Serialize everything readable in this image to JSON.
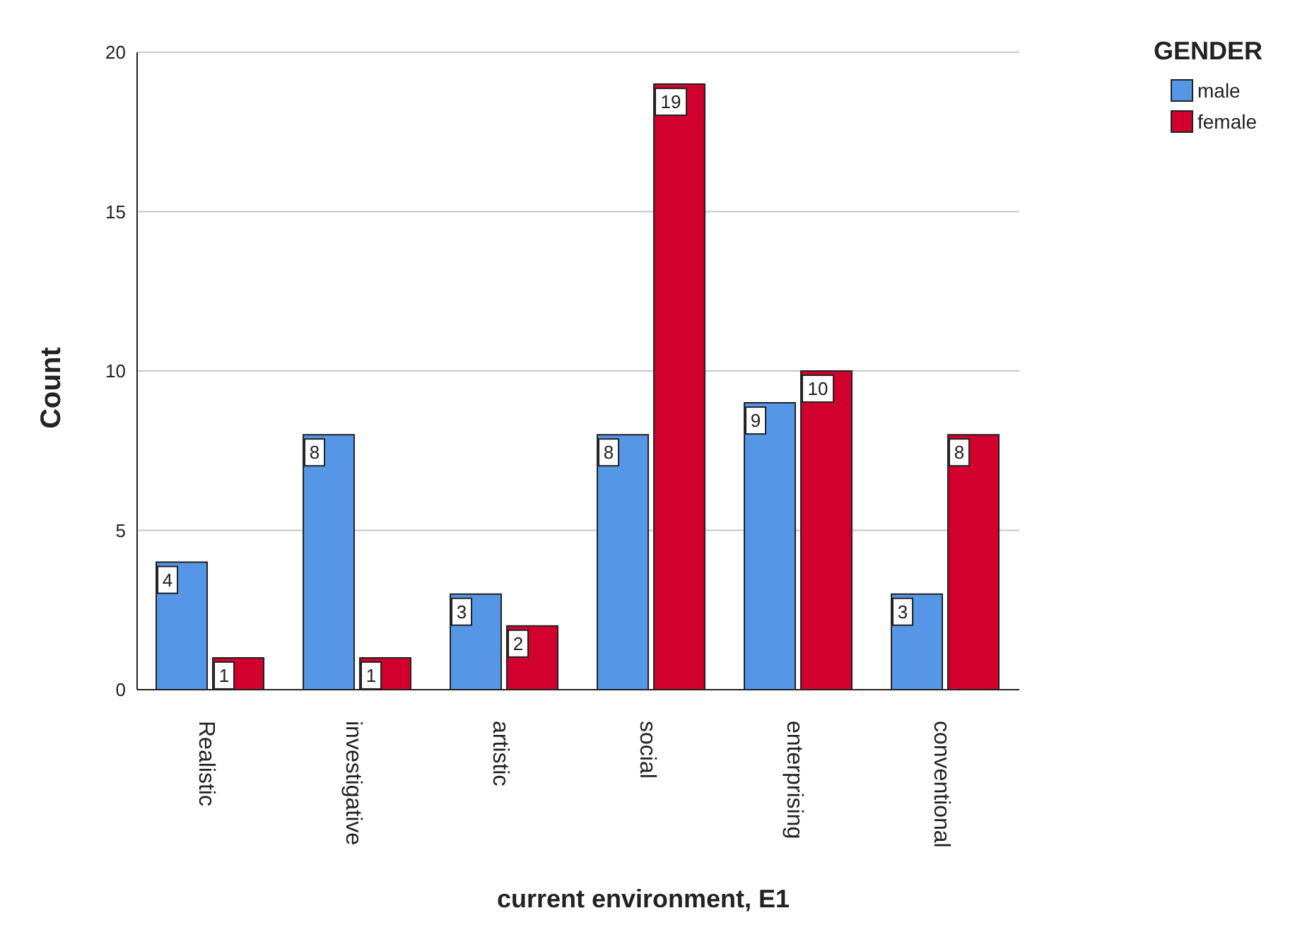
{
  "chart_data": {
    "type": "bar",
    "xlabel": "current environment, E1",
    "ylabel": "Count",
    "legend_title": "GENDER",
    "categories": [
      "Realistic",
      "investigative",
      "artistic",
      "social",
      "enterprising",
      "conventional"
    ],
    "series": [
      {
        "name": "male",
        "color": "#5596e6",
        "values": [
          4,
          8,
          3,
          8,
          9,
          3
        ]
      },
      {
        "name": "female",
        "color": "#d1002c",
        "values": [
          1,
          1,
          2,
          19,
          10,
          8
        ]
      }
    ],
    "ylim": [
      0,
      20
    ],
    "yticks": [
      0,
      5,
      10,
      15,
      20
    ],
    "grid": "y",
    "legend": "top right",
    "data_labels": true
  }
}
